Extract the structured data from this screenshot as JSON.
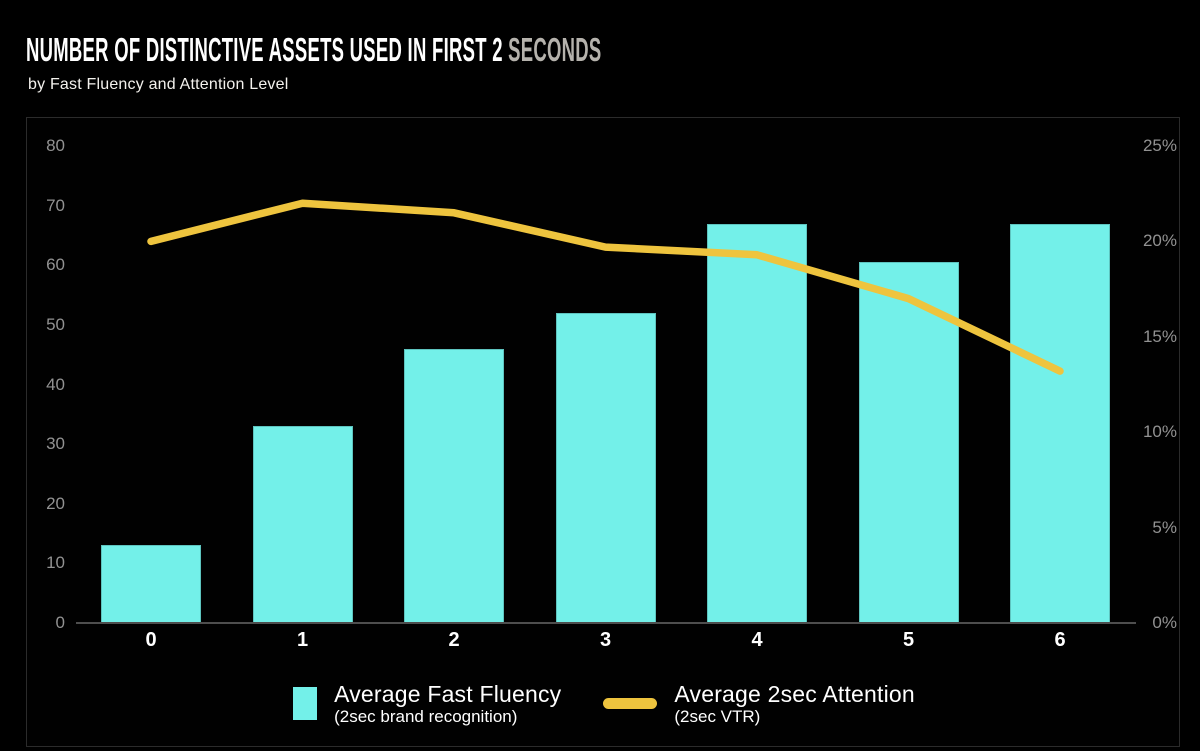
{
  "header": {
    "title_main": "NUMBER OF DISTINCTIVE ASSETS USED IN FIRST 2 ",
    "title_accent": "SECONDS",
    "subtitle": "by Fast Fluency and Attention Level"
  },
  "colors": {
    "bar": "#73f0e9",
    "line": "#eec43e",
    "axis_text": "#929292",
    "x_label": "#ffffff",
    "title_accent": "#b5b2ac",
    "background": "#000000"
  },
  "chart_data": {
    "type": "bar+line combo",
    "categories": [
      "0",
      "1",
      "2",
      "3",
      "4",
      "5",
      "6"
    ],
    "series": [
      {
        "name": "Average Fast Fluency",
        "note": "(2sec brand recognition)",
        "type": "bar",
        "axis": "left",
        "values": [
          13,
          33,
          46,
          52,
          67,
          60.5,
          67
        ]
      },
      {
        "name": "Average 2sec Attention",
        "note": "(2sec VTR)",
        "type": "line",
        "axis": "right",
        "values": [
          20,
          22,
          21.5,
          19.7,
          19.3,
          17,
          13.2
        ]
      }
    ],
    "left_axis": {
      "min": 0,
      "max": 80,
      "step": 10,
      "ticks": [
        "0",
        "10",
        "20",
        "30",
        "40",
        "50",
        "60",
        "70",
        "80"
      ]
    },
    "right_axis": {
      "min": 0,
      "max": 25,
      "step": 5,
      "ticks": [
        "0%",
        "5%",
        "10%",
        "15%",
        "20%",
        "25%"
      ]
    },
    "grid": false,
    "legend_position": "bottom-center"
  }
}
